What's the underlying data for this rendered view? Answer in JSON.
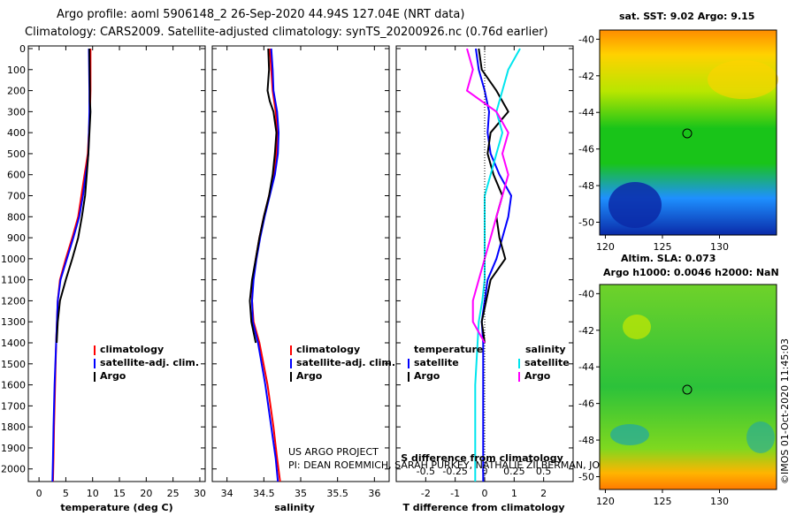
{
  "header": {
    "title_line1": "Argo profile: aoml 5906148_2 26-Sep-2020 44.94S 127.04E (NRT data)",
    "title_line2": "Climatology: CARS2009. Satellite-adjusted climatology: synTS_20200926.nc (0.76d earlier)"
  },
  "credits": {
    "project": "US ARGO PROJECT",
    "pis": "PI: DEAN ROEMMICH, SARAH PURKEY, NATHALIE ZILBERMAN, JOHN GILSON"
  },
  "watermark": "©IMOS 01-Oct-2020 11:45:03",
  "colors": {
    "climatology": "#ff0000",
    "satellite": "#0000ff",
    "argo": "#000000",
    "sat_salinity": "#00e5ee",
    "argo_salinity": "#ff00ff"
  },
  "chart_data": [
    {
      "type": "line",
      "id": "temperature",
      "xlabel": "temperature (deg C)",
      "ylabel": "",
      "xlim": [
        -2,
        31
      ],
      "ylim": [
        0,
        2060
      ],
      "xticks": [
        "0",
        "5",
        "10",
        "15",
        "20",
        "25",
        "30"
      ],
      "yticks": [
        "0",
        "100",
        "200",
        "300",
        "400",
        "500",
        "600",
        "700",
        "800",
        "900",
        "1000",
        "1100",
        "1200",
        "1300",
        "1400",
        "1500",
        "1600",
        "1700",
        "1800",
        "1900",
        "2000"
      ],
      "legend": [
        "climatology",
        "satellite-adj. clim.",
        "Argo"
      ],
      "series": [
        {
          "name": "climatology",
          "x": [
            9.6,
            9.6,
            9.5,
            9.3,
            9.1,
            8.8,
            8.5,
            7.9,
            7.3,
            6.2,
            5.0,
            3.9,
            3.5,
            3.2,
            3.0,
            2.8,
            2.7,
            2.6
          ],
          "y": [
            0,
            200,
            300,
            400,
            500,
            550,
            600,
            700,
            800,
            900,
            1000,
            1100,
            1200,
            1400,
            1600,
            1800,
            1950,
            2060
          ]
        },
        {
          "name": "satellite-adj. clim.",
          "x": [
            9.3,
            9.4,
            9.4,
            9.3,
            9.2,
            9.0,
            8.7,
            8.2,
            7.5,
            6.4,
            5.2,
            4.0,
            3.5,
            3.2,
            2.9,
            2.7,
            2.6,
            2.5
          ],
          "y": [
            0,
            200,
            300,
            400,
            500,
            550,
            600,
            700,
            800,
            900,
            1000,
            1100,
            1200,
            1400,
            1600,
            1800,
            1950,
            2060
          ]
        },
        {
          "name": "Argo",
          "x": [
            9.4,
            9.5,
            9.5,
            9.6,
            9.4,
            9.3,
            9.2,
            8.9,
            8.6,
            8.0,
            7.3,
            6.2,
            5.0,
            3.9,
            3.5,
            3.3
          ],
          "y": [
            0,
            200,
            250,
            300,
            400,
            450,
            500,
            600,
            700,
            800,
            900,
            1000,
            1100,
            1200,
            1300,
            1400
          ]
        }
      ]
    },
    {
      "type": "line",
      "id": "salinity",
      "xlabel": "salinity",
      "ylabel": "",
      "xlim": [
        33.8,
        36.2
      ],
      "ylim": [
        0,
        2060
      ],
      "xticks": [
        "34",
        "34.5",
        "35",
        "35.5",
        "36"
      ],
      "legend": [
        "climatology",
        "satellite-adj. clim.",
        "Argo"
      ],
      "series": [
        {
          "name": "climatology",
          "x": [
            34.58,
            34.6,
            34.62,
            34.66,
            34.68,
            34.67,
            34.63,
            34.57,
            34.5,
            34.44,
            34.39,
            34.35,
            34.34,
            34.36,
            34.44,
            34.55,
            34.63,
            34.68,
            34.72
          ],
          "y": [
            0,
            100,
            200,
            300,
            400,
            500,
            600,
            700,
            800,
            900,
            1000,
            1100,
            1200,
            1300,
            1400,
            1600,
            1800,
            1950,
            2060
          ]
        },
        {
          "name": "satellite-adj. clim.",
          "x": [
            34.6,
            34.62,
            34.63,
            34.68,
            34.7,
            34.69,
            34.65,
            34.58,
            34.51,
            34.45,
            34.4,
            34.36,
            34.34,
            34.35,
            34.42,
            34.52,
            34.6,
            34.66,
            34.69
          ],
          "y": [
            0,
            100,
            200,
            300,
            400,
            500,
            600,
            700,
            800,
            900,
            1000,
            1100,
            1200,
            1300,
            1400,
            1600,
            1800,
            1950,
            2060
          ]
        },
        {
          "name": "Argo",
          "x": [
            34.56,
            34.57,
            34.55,
            34.58,
            34.63,
            34.67,
            34.65,
            34.62,
            34.57,
            34.5,
            34.44,
            34.39,
            34.34,
            34.31,
            34.33,
            34.39
          ],
          "y": [
            0,
            100,
            200,
            250,
            300,
            400,
            500,
            600,
            700,
            800,
            900,
            1000,
            1100,
            1200,
            1300,
            1400
          ]
        }
      ]
    },
    {
      "type": "line",
      "id": "difference",
      "xlabel": "T difference from climatology",
      "xlabel2": "S difference from climatology",
      "xlim": [
        -3,
        3
      ],
      "ylim": [
        0,
        2060
      ],
      "xticks": [
        "-2",
        "-1",
        "0",
        "1",
        "2"
      ],
      "xticks2": [
        "-0.5",
        "-0.25",
        "0",
        "0.25",
        "0.5"
      ],
      "legend_temp_title": "temperature",
      "legend_sal_title": "salinity",
      "legend_temp": [
        "satellite",
        "Argo"
      ],
      "legend_sal": [
        "satellite",
        "Argo"
      ],
      "series": [
        {
          "name": "T satellite",
          "x": [
            -0.3,
            -0.2,
            0.0,
            0.15,
            0.1,
            0.2,
            0.5,
            0.9,
            0.8,
            0.6,
            0.4,
            0.1,
            0.0,
            -0.1,
            -0.05,
            -0.05,
            -0.05,
            -0.05,
            -0.05
          ],
          "y": [
            0,
            100,
            200,
            300,
            400,
            500,
            600,
            700,
            800,
            900,
            1000,
            1100,
            1200,
            1300,
            1400,
            1600,
            1800,
            1950,
            2060
          ]
        },
        {
          "name": "T Argo",
          "x": [
            -0.2,
            -0.1,
            0.4,
            0.8,
            0.2,
            0.1,
            0.3,
            0.6,
            0.4,
            0.5,
            0.7,
            0.2,
            0.05,
            -0.1,
            0.0
          ],
          "y": [
            0,
            100,
            200,
            300,
            400,
            500,
            600,
            700,
            800,
            900,
            1000,
            1100,
            1200,
            1300,
            1400
          ]
        },
        {
          "name": "S satellite",
          "x": [
            0.3,
            0.2,
            0.15,
            0.1,
            0.15,
            0.1,
            0.05,
            0.0,
            0.0,
            0.0,
            0.0,
            0.0,
            -0.02,
            -0.05,
            -0.06,
            -0.08,
            -0.08,
            -0.08,
            -0.08
          ],
          "y": [
            0,
            100,
            200,
            300,
            400,
            500,
            600,
            700,
            800,
            900,
            1000,
            1100,
            1200,
            1300,
            1400,
            1600,
            1800,
            1950,
            2060
          ]
        },
        {
          "name": "S Argo",
          "x": [
            -0.15,
            -0.1,
            -0.15,
            0.1,
            0.2,
            0.15,
            0.2,
            0.15,
            0.1,
            0.05,
            0.0,
            -0.05,
            -0.1,
            -0.1,
            0.0
          ],
          "y": [
            0,
            100,
            200,
            300,
            400,
            500,
            600,
            700,
            800,
            900,
            1000,
            1100,
            1200,
            1300,
            1400
          ]
        }
      ]
    },
    {
      "type": "heatmap",
      "id": "sst_map",
      "title": "sat. SST: 9.02 Argo: 9.15",
      "xticks": [
        "120",
        "125",
        "130"
      ],
      "yticks": [
        "-40",
        "-42",
        "-44",
        "-46",
        "-48",
        "-50"
      ],
      "xlim": [
        119.5,
        135
      ],
      "ylim": [
        -50.7,
        -39.5
      ],
      "marker": {
        "lon": 127.04,
        "lat": -44.94
      }
    },
    {
      "type": "heatmap",
      "id": "sla_map",
      "title": "Altim. SLA: 0.073",
      "title2": "Argo h1000: 0.0046 h2000: NaN",
      "xticks": [
        "120",
        "125",
        "130"
      ],
      "yticks": [
        "-40",
        "-42",
        "-44",
        "-46",
        "-48",
        "-50"
      ],
      "xlim": [
        119.5,
        135
      ],
      "ylim": [
        -50.7,
        -39.5
      ],
      "marker": {
        "lon": 127.04,
        "lat": -44.94
      }
    }
  ]
}
